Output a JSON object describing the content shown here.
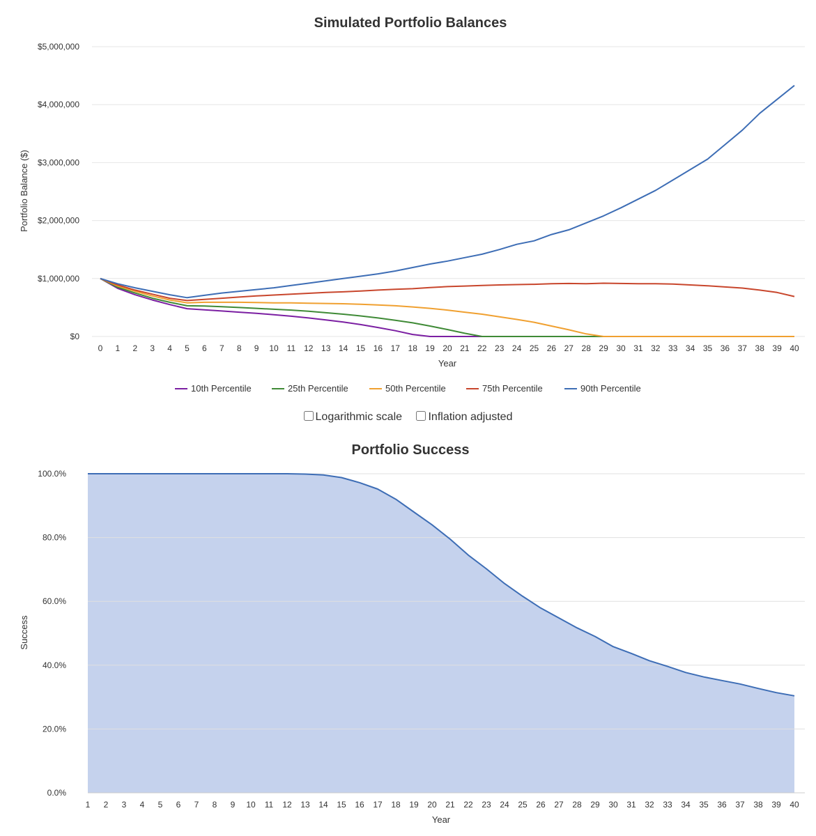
{
  "controls": {
    "log_scale_label": "Logarithmic scale",
    "inflation_label": "Inflation adjusted",
    "log_scale_checked": false,
    "inflation_checked": false
  },
  "chart_data": [
    {
      "type": "line",
      "title": "Simulated Portfolio Balances",
      "xlabel": "Year",
      "ylabel": "Portfolio Balance ($)",
      "x": [
        0,
        1,
        2,
        3,
        4,
        5,
        6,
        7,
        8,
        9,
        10,
        11,
        12,
        13,
        14,
        15,
        16,
        17,
        18,
        19,
        20,
        21,
        22,
        23,
        24,
        25,
        26,
        27,
        28,
        29,
        30,
        31,
        32,
        33,
        34,
        35,
        36,
        37,
        38,
        39,
        40
      ],
      "ylim": [
        0,
        5000000
      ],
      "yticks": [
        0,
        1000000,
        2000000,
        3000000,
        4000000,
        5000000
      ],
      "ytick_labels": [
        "$0",
        "$1,000,000",
        "$2,000,000",
        "$3,000,000",
        "$4,000,000",
        "$5,000,000"
      ],
      "grid": true,
      "legend": "bottom",
      "series": [
        {
          "name": "10th Percentile",
          "color": "#7b1fa2",
          "values": [
            1000000,
            830000,
            720000,
            630000,
            550000,
            480000,
            460000,
            440000,
            420000,
            400000,
            375000,
            350000,
            320000,
            285000,
            250000,
            205000,
            155000,
            100000,
            35000,
            0,
            0,
            0,
            0,
            0,
            0,
            0,
            0,
            0,
            0,
            0,
            0,
            0,
            0,
            0,
            0,
            0,
            0,
            0,
            0,
            0,
            0
          ]
        },
        {
          "name": "25th Percentile",
          "color": "#3f8a36",
          "values": [
            1000000,
            850000,
            750000,
            660000,
            590000,
            530000,
            525000,
            515000,
            500000,
            485000,
            470000,
            455000,
            435000,
            410000,
            385000,
            355000,
            320000,
            280000,
            235000,
            180000,
            120000,
            55000,
            0,
            0,
            0,
            0,
            0,
            0,
            0,
            0,
            0,
            0,
            0,
            0,
            0,
            0,
            0,
            0,
            0,
            0,
            0
          ]
        },
        {
          "name": "50th Percentile",
          "color": "#f0a030",
          "values": [
            1000000,
            870000,
            780000,
            700000,
            630000,
            580000,
            590000,
            590000,
            590000,
            585000,
            580000,
            580000,
            575000,
            570000,
            565000,
            555000,
            545000,
            530000,
            510000,
            485000,
            455000,
            420000,
            385000,
            340000,
            295000,
            245000,
            180000,
            115000,
            45000,
            0,
            0,
            0,
            0,
            0,
            0,
            0,
            0,
            0,
            0,
            0,
            0
          ]
        },
        {
          "name": "75th Percentile",
          "color": "#c8462c",
          "values": [
            1000000,
            890000,
            800000,
            730000,
            660000,
            620000,
            640000,
            660000,
            680000,
            700000,
            715000,
            730000,
            745000,
            760000,
            770000,
            785000,
            800000,
            815000,
            825000,
            845000,
            860000,
            870000,
            880000,
            890000,
            895000,
            900000,
            910000,
            915000,
            910000,
            920000,
            915000,
            910000,
            910000,
            905000,
            890000,
            875000,
            855000,
            835000,
            800000,
            760000,
            690000
          ]
        },
        {
          "name": "90th Percentile",
          "color": "#3d6db5",
          "values": [
            1000000,
            910000,
            840000,
            780000,
            720000,
            670000,
            710000,
            750000,
            780000,
            810000,
            840000,
            880000,
            920000,
            960000,
            1000000,
            1040000,
            1080000,
            1130000,
            1190000,
            1250000,
            1300000,
            1360000,
            1420000,
            1500000,
            1590000,
            1650000,
            1760000,
            1840000,
            1960000,
            2080000,
            2220000,
            2370000,
            2520000,
            2700000,
            2880000,
            3060000,
            3310000,
            3560000,
            3850000,
            4090000,
            4330000
          ]
        }
      ]
    },
    {
      "type": "area",
      "title": "Portfolio Success",
      "xlabel": "Year",
      "ylabel": "Success",
      "x": [
        1,
        2,
        3,
        4,
        5,
        6,
        7,
        8,
        9,
        10,
        11,
        12,
        13,
        14,
        15,
        16,
        17,
        18,
        19,
        20,
        21,
        22,
        23,
        24,
        25,
        26,
        27,
        28,
        29,
        30,
        31,
        32,
        33,
        34,
        35,
        36,
        37,
        38,
        39,
        40
      ],
      "ylim": [
        0,
        100
      ],
      "yticks": [
        0,
        20,
        40,
        60,
        80,
        100
      ],
      "ytick_labels": [
        "0.0%",
        "20.0%",
        "40.0%",
        "60.0%",
        "80.0%",
        "100.0%"
      ],
      "grid": true,
      "series": [
        {
          "color": "#3d6db5",
          "fill": "#c5d2ed",
          "values": [
            100,
            100,
            100,
            100,
            100,
            100,
            100,
            100,
            100,
            100,
            100,
            100,
            99.9,
            99.6,
            98.8,
            97.2,
            95.2,
            92,
            88,
            84,
            79.5,
            74.5,
            70.2,
            65.6,
            61.6,
            57.9,
            54.8,
            51.7,
            49,
            45.8,
            43.7,
            41.4,
            39.6,
            37.7,
            36.3,
            35.2,
            34.1,
            32.7,
            31.4,
            30.4
          ]
        }
      ]
    }
  ]
}
